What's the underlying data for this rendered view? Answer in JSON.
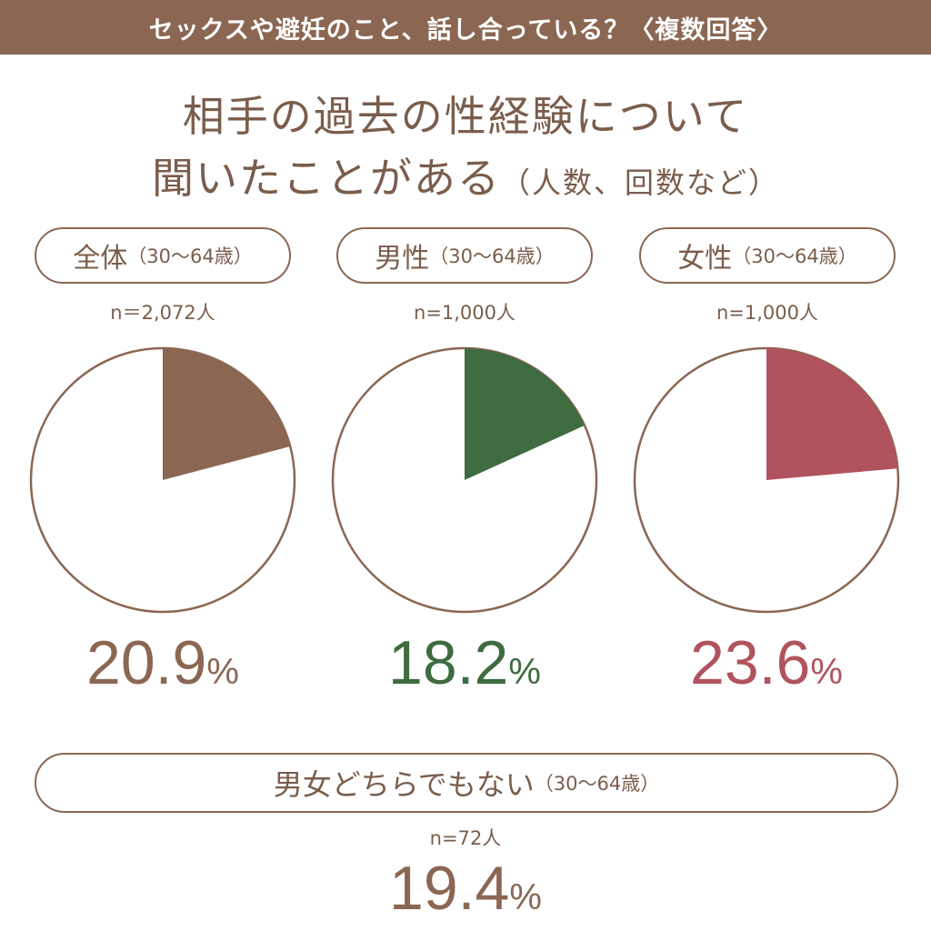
{
  "header": "セックスや避妊のこと、話し合っている？〈複数回答〉",
  "title_line1": "相手の過去の性経験について",
  "title_line2": "聞いたことがある",
  "title_note": "（人数、回数など）",
  "groups": [
    {
      "label": "全体",
      "age": "（30～64歳）",
      "n": "n＝2,072人",
      "value": "20.9",
      "unit": "%",
      "color": "#8b6753"
    },
    {
      "label": "男性",
      "age": "（30～64歳）",
      "n": "n=1,000人",
      "value": "18.2",
      "unit": "%",
      "color": "#3e6b3f"
    },
    {
      "label": "女性",
      "age": "（30～64歳）",
      "n": "n=1,000人",
      "value": "23.6",
      "unit": "%",
      "color": "#b1535f"
    }
  ],
  "other": {
    "label": "男女どちらでもない",
    "age": "（30～64歳）",
    "n": "n=72人",
    "value": "19.4",
    "unit": "%",
    "color": "#8b6753"
  },
  "chart_data": {
    "type": "pie",
    "title": "相手の過去の性経験について聞いたことがある（人数、回数など）",
    "series": [
      {
        "name": "全体（30～64歳）",
        "n": 2072,
        "value": 20.9
      },
      {
        "name": "男性（30～64歳）",
        "n": 1000,
        "value": 18.2
      },
      {
        "name": "女性（30～64歳）",
        "n": 1000,
        "value": 23.6
      },
      {
        "name": "男女どちらでもない（30～64歳）",
        "n": 72,
        "value": 19.4
      }
    ]
  }
}
